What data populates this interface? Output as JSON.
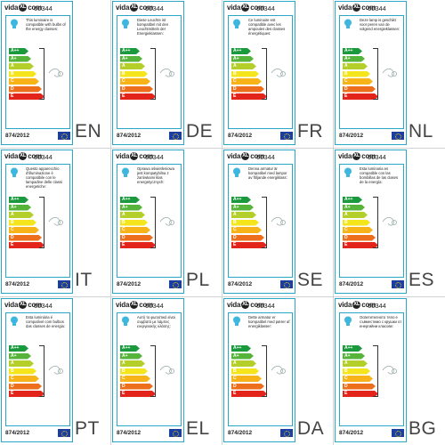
{
  "label_common": {
    "brand_prefix": "vida",
    "brand_mark": "XL",
    "brand_suffix": "com",
    "model": "60344",
    "regulation": "874/2012",
    "classes": [
      {
        "label": "A++",
        "color": "#1a9a3c"
      },
      {
        "label": "A+",
        "color": "#56b43b"
      },
      {
        "label": "A",
        "color": "#b4cf2a"
      },
      {
        "label": "B",
        "color": "#f4e51d"
      },
      {
        "label": "C",
        "color": "#f7b318"
      },
      {
        "label": "D",
        "color": "#ee6f1b"
      },
      {
        "label": "E",
        "color": "#e3241b"
      }
    ],
    "border_color": "#2aa7c6",
    "bulb_icon": "bulb-icon",
    "flag_icon": "eu-flag-icon"
  },
  "labels": [
    {
      "lang": "EN",
      "text": "This luminaire is compatible with bulbs of the energy classes:"
    },
    {
      "lang": "DE",
      "text": "Diese Leuchte ist kompatibel mit den Leuchtmitteln der Energieklassen:"
    },
    {
      "lang": "FR",
      "text": "Ce luminaire est compatible avec les ampoules des classes énergétiques:"
    },
    {
      "lang": "NL",
      "text": "Deze lamp is geschikt voor peren van de volgend energieklassen:"
    },
    {
      "lang": "IT",
      "text": "Questo apparecchio d'illuminazione è compatibile con le lampadine delle classi energetiche:"
    },
    {
      "lang": "PL",
      "text": "Oprawa oświetleniowa jest kompatybilna z żarówkami klas energetycznych:"
    },
    {
      "lang": "SE",
      "text": "Denna armatur är kompatibel med lampor av följande energiklass:"
    },
    {
      "lang": "ES",
      "text": "Esta luminaria es compatible con las bombillas de las clases de la energía:"
    },
    {
      "lang": "PT",
      "text": "Esta luminária é compatível com bulbos das classes de energia:"
    },
    {
      "lang": "EL",
      "text": "Αυτό το φωτιστικό είναι συμβατό με λάμπες ενεργειακής κλάσης:"
    },
    {
      "lang": "DA",
      "text": "Dette armatur er kompatibel med pærer af energiklasser:"
    },
    {
      "lang": "BG",
      "text": "Осветителното тяло е съвместимо с крушки от енергийни класове:"
    }
  ]
}
